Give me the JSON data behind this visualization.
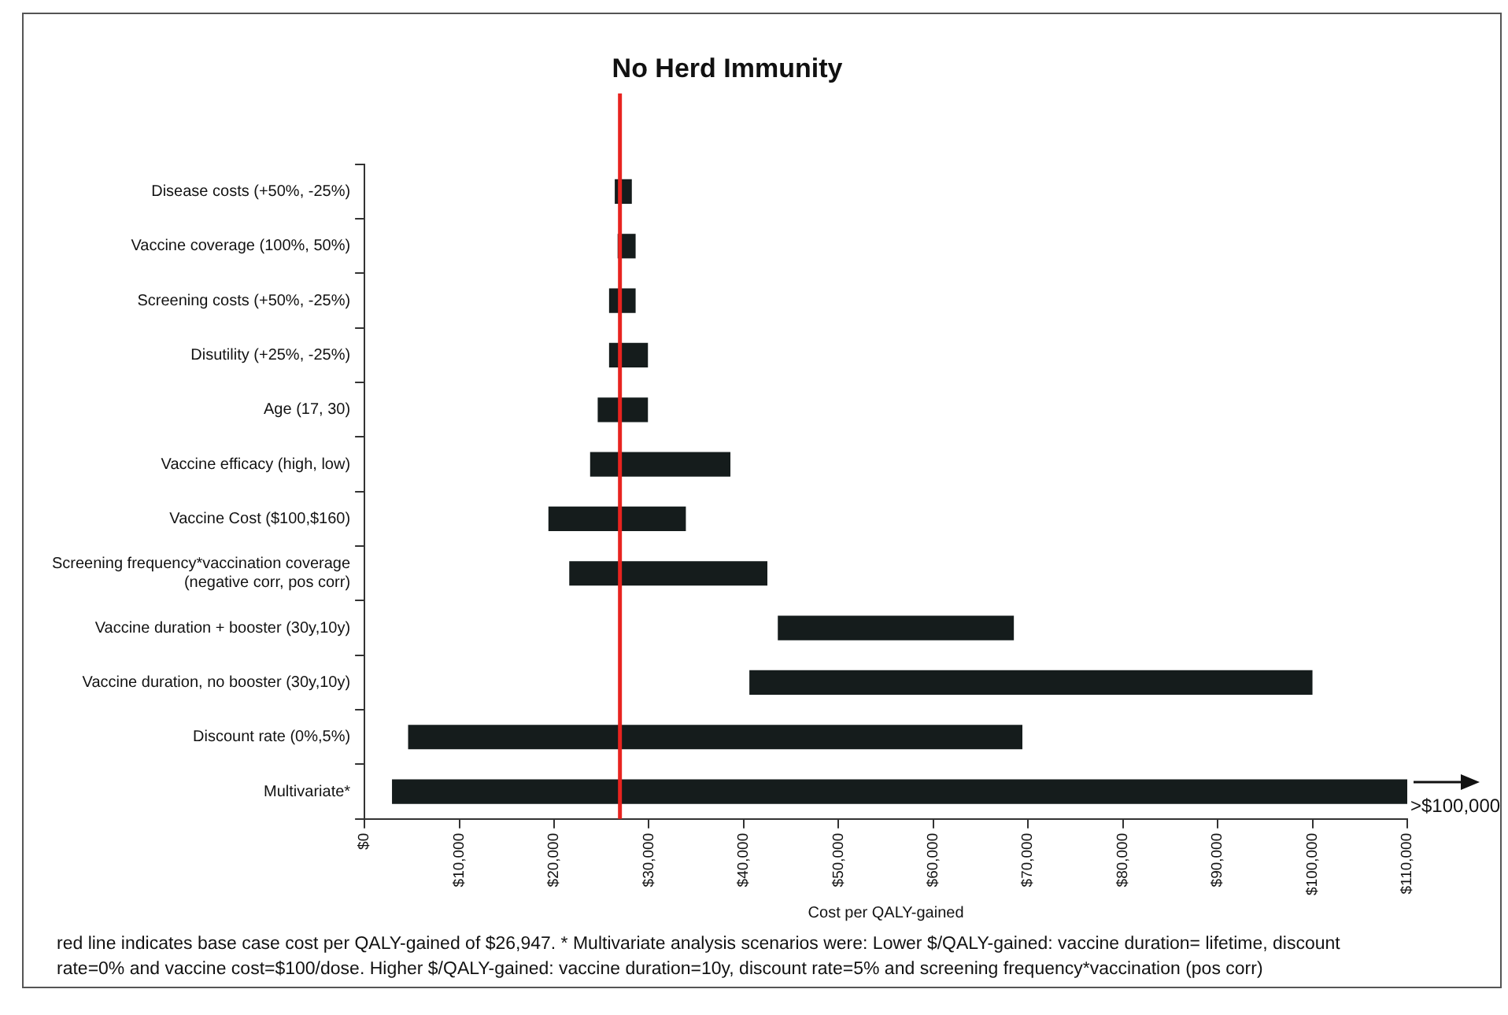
{
  "chart_data": {
    "type": "bar",
    "orientation": "horizontal",
    "title": "No Herd Immunity",
    "xlabel": "Cost per QALY-gained",
    "categories": [
      "Disease costs (+50%, -25%)",
      "Vaccine coverage (100%, 50%)",
      "Screening costs (+50%, -25%)",
      "Disutility (+25%, -25%)",
      "Age (17, 30)",
      "Vaccine efficacy (high, low)",
      "Vaccine Cost ($100,$160)",
      "Screening frequency*vaccination coverage (negative corr, pos corr)",
      "Vaccine duration + booster (30y,10y)",
      "Vaccine duration, no booster (30y,10y)",
      "Discount rate (0%,5%)",
      "Multivariate*"
    ],
    "base": [
      26400,
      26700,
      25800,
      25800,
      24600,
      23800,
      19400,
      21600,
      43600,
      40600,
      4600,
      2900
    ],
    "values": [
      1800,
      1900,
      2800,
      4100,
      5300,
      14800,
      14500,
      20900,
      24900,
      59400,
      64800,
      107100
    ],
    "color": "#151c1c",
    "xlim": [
      0,
      110000
    ],
    "xticks": [
      {
        "value": 0,
        "label": "$0"
      },
      {
        "value": 10000,
        "label": "$10,000"
      },
      {
        "value": 20000,
        "label": "$20,000"
      },
      {
        "value": 30000,
        "label": "$30,000"
      },
      {
        "value": 40000,
        "label": "$40,000"
      },
      {
        "value": 50000,
        "label": "$50,000"
      },
      {
        "value": 60000,
        "label": "$60,000"
      },
      {
        "value": 70000,
        "label": "$70,000"
      },
      {
        "value": 80000,
        "label": "$80,000"
      },
      {
        "value": 90000,
        "label": "$90,000"
      },
      {
        "value": 100000,
        "label": "$100,000"
      },
      {
        "value": 110000,
        "label": "$110,000"
      }
    ],
    "ref_lines": [
      {
        "axis": "x",
        "value": 26947,
        "color": "#e8231f"
      }
    ],
    "grid": false,
    "legend": false,
    "annotations": [
      {
        "text": ">$100,000",
        "x": 110000,
        "y": "Multivariate*"
      },
      "red line indicates base case cost per QALY-gained of $26,947. * Multivariate analysis scenarios were: Lower $/QALY-gained: vaccine duration= lifetime, discount rate=0% and vaccine cost=$100/dose. Higher $/QALY-gained:  vaccine duration=10y, discount rate=5% and screening frequency*vaccination (pos corr)"
    ]
  }
}
